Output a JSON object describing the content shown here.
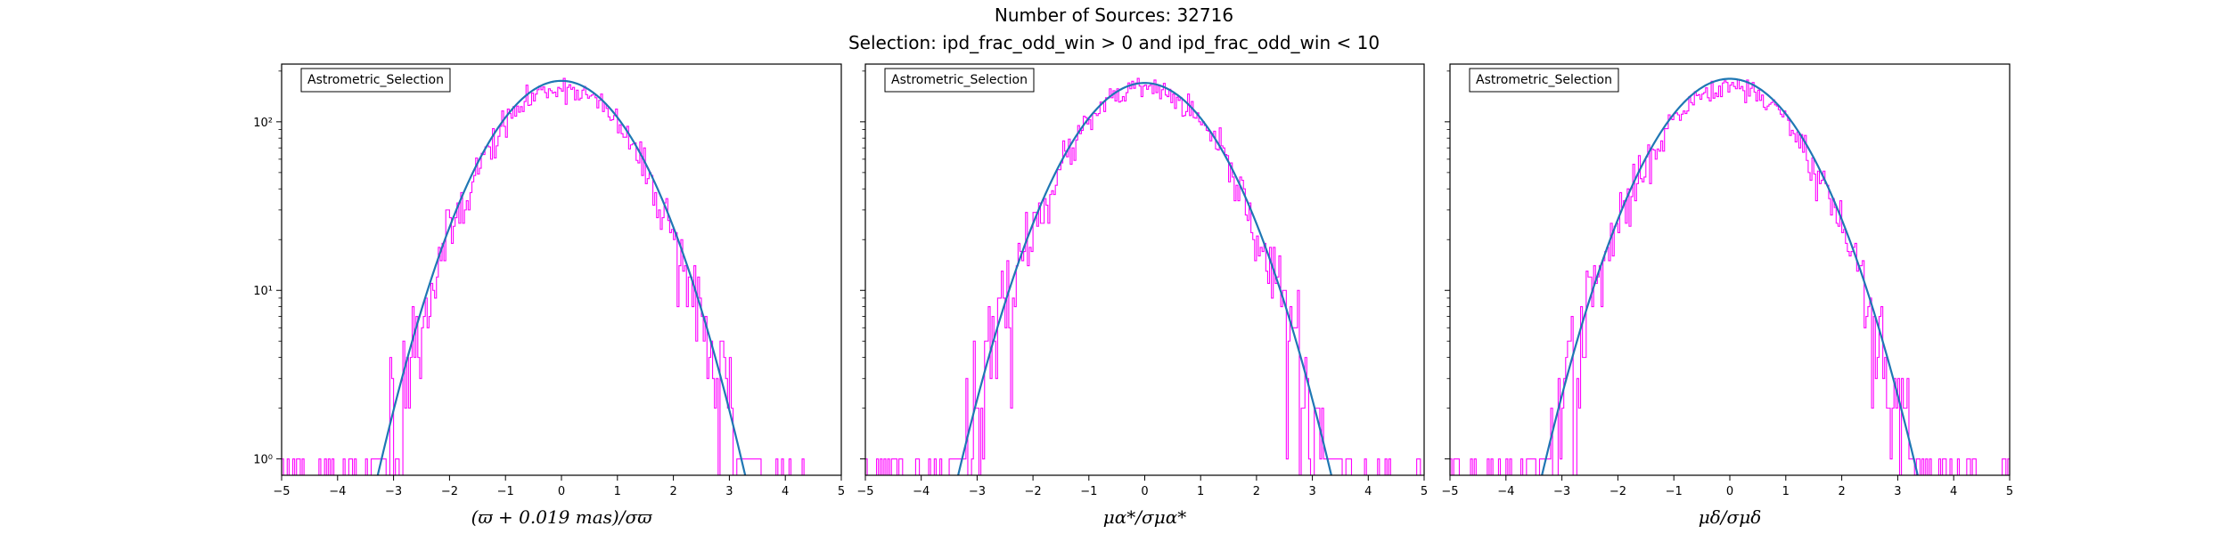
{
  "figure": {
    "title_line1": "Number of Sources: 32716",
    "title_line2": "Selection: ipd_frac_odd_win > 0 and ipd_frac_odd_win < 10"
  },
  "colors": {
    "histogram": "#ff00ff",
    "fit_curve": "#1f77b4",
    "fit_curve_alt": "#008080"
  },
  "chart_data": [
    {
      "type": "histogram",
      "scale_y": "log",
      "xlim": [
        -5,
        5
      ],
      "ylim": [
        0.8,
        220
      ],
      "x_ticks": [
        -5,
        -4,
        -3,
        -2,
        -1,
        0,
        1,
        2,
        3,
        4,
        5
      ],
      "x_tick_labels": [
        "−5",
        "−4",
        "−3",
        "−2",
        "−1",
        "0",
        "1",
        "2",
        "3",
        "4",
        "5"
      ],
      "y_ticks": [
        1,
        10,
        100
      ],
      "y_tick_labels": [
        "10⁰",
        "10¹",
        "10²"
      ],
      "y_tick_labels_visible": true,
      "xlabel": "(ϖ + 0.019 mas)/σϖ",
      "legend": "Astrometric_Selection",
      "legend_position": "top-left",
      "fit_peak": 175,
      "fit_sigma": 1.0,
      "hist_peak": 160,
      "seed": 11
    },
    {
      "type": "histogram",
      "scale_y": "log",
      "xlim": [
        -5,
        5
      ],
      "ylim": [
        0.8,
        220
      ],
      "x_ticks": [
        -5,
        -4,
        -3,
        -2,
        -1,
        0,
        1,
        2,
        3,
        4,
        5
      ],
      "x_tick_labels": [
        "−5",
        "−4",
        "−3",
        "−2",
        "−1",
        "0",
        "1",
        "2",
        "3",
        "4",
        "5"
      ],
      "y_ticks": [
        1,
        10,
        100
      ],
      "y_tick_labels": [
        "10⁰",
        "10¹",
        "10²"
      ],
      "y_tick_labels_visible": false,
      "xlabel": "μα*/σμα*",
      "legend": "Astrometric_Selection",
      "legend_position": "top-left",
      "fit_peak": 170,
      "fit_sigma": 1.02,
      "hist_peak": 158,
      "seed": 23
    },
    {
      "type": "histogram",
      "scale_y": "log",
      "xlim": [
        -5,
        5
      ],
      "ylim": [
        0.8,
        220
      ],
      "x_ticks": [
        -5,
        -4,
        -3,
        -2,
        -1,
        0,
        1,
        2,
        3,
        4,
        5
      ],
      "x_tick_labels": [
        "−5",
        "−4",
        "−3",
        "−2",
        "−1",
        "0",
        "1",
        "2",
        "3",
        "4",
        "5"
      ],
      "y_ticks": [
        1,
        10,
        100
      ],
      "y_tick_labels": [
        "10⁰",
        "10¹",
        "10²"
      ],
      "y_tick_labels_visible": false,
      "xlabel": "μδ/σμδ",
      "legend": "Astrometric_Selection",
      "legend_position": "top-left",
      "fit_peak": 180,
      "fit_sigma": 1.02,
      "hist_peak": 165,
      "seed": 37
    }
  ]
}
